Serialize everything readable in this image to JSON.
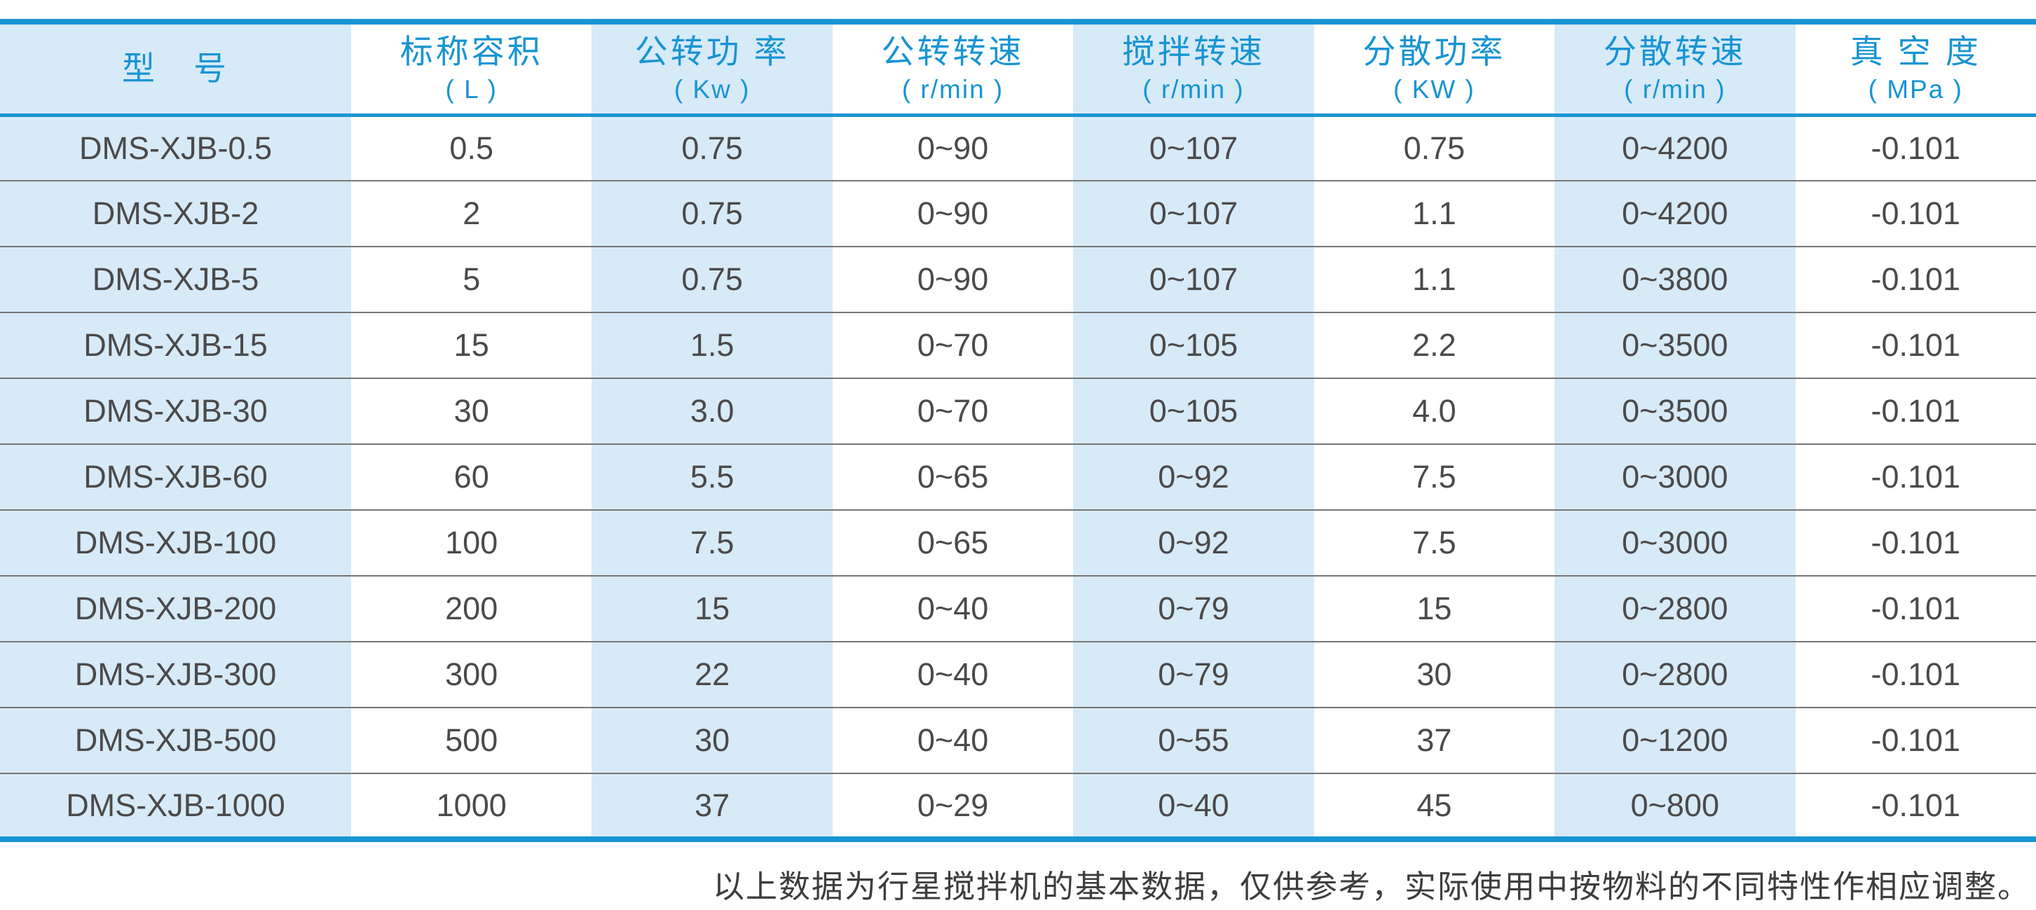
{
  "colors": {
    "accent_blue": "#1794d3",
    "column_tint": "#d7eaf8",
    "cell_text": "#4a4a4b",
    "row_separator": "#767676",
    "note_text": "#3d3d3d"
  },
  "chart_data": {
    "type": "table",
    "title": "",
    "columns": [
      {
        "label": "型　号",
        "unit": ""
      },
      {
        "label": "标称容积",
        "unit": "( L )"
      },
      {
        "label": "公转功 率",
        "unit": "( Kw )"
      },
      {
        "label": "公转转速",
        "unit": "( r/min )"
      },
      {
        "label": "搅拌转速",
        "unit": "( r/min )"
      },
      {
        "label": "分散功率",
        "unit": "( KW )"
      },
      {
        "label": "分散转速",
        "unit": "( r/min )"
      },
      {
        "label": "真 空 度",
        "unit": "( MPa )"
      }
    ],
    "rows": [
      [
        "DMS-XJB-0.5",
        "0.5",
        "0.75",
        "0~90",
        "0~107",
        "0.75",
        "0~4200",
        "-0.101"
      ],
      [
        "DMS-XJB-2",
        "2",
        "0.75",
        "0~90",
        "0~107",
        "1.1",
        "0~4200",
        "-0.101"
      ],
      [
        "DMS-XJB-5",
        "5",
        "0.75",
        "0~90",
        "0~107",
        "1.1",
        "0~3800",
        "-0.101"
      ],
      [
        "DMS-XJB-15",
        "15",
        "1.5",
        "0~70",
        "0~105",
        "2.2",
        "0~3500",
        "-0.101"
      ],
      [
        "DMS-XJB-30",
        "30",
        "3.0",
        "0~70",
        "0~105",
        "4.0",
        "0~3500",
        "-0.101"
      ],
      [
        "DMS-XJB-60",
        "60",
        "5.5",
        "0~65",
        "0~92",
        "7.5",
        "0~3000",
        "-0.101"
      ],
      [
        "DMS-XJB-100",
        "100",
        "7.5",
        "0~65",
        "0~92",
        "7.5",
        "0~3000",
        "-0.101"
      ],
      [
        "DMS-XJB-200",
        "200",
        "15",
        "0~40",
        "0~79",
        "15",
        "0~2800",
        "-0.101"
      ],
      [
        "DMS-XJB-300",
        "300",
        "22",
        "0~40",
        "0~79",
        "30",
        "0~2800",
        "-0.101"
      ],
      [
        "DMS-XJB-500",
        "500",
        "30",
        "0~40",
        "0~55",
        "37",
        "0~1200",
        "-0.101"
      ],
      [
        "DMS-XJB-1000",
        "1000",
        "37",
        "0~29",
        "0~40",
        "45",
        "0~800",
        "-0.101"
      ]
    ]
  },
  "footnote": "以上数据为行星搅拌机的基本数据，仅供参考，实际使用中按物料的不同特性作相应调整。"
}
